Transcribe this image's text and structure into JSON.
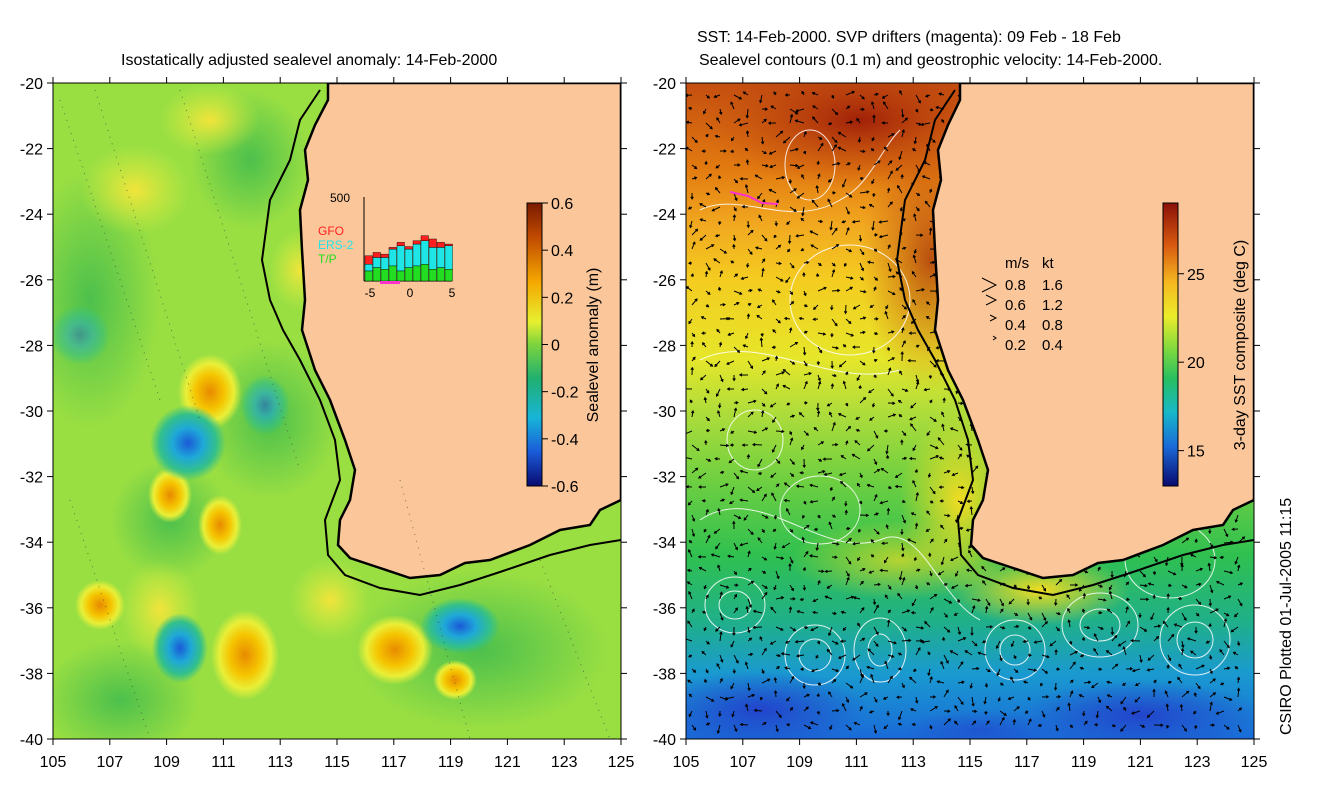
{
  "left_panel": {
    "title": "Isostatically adjusted sealevel anomaly: 14-Feb-2000",
    "colorbar": {
      "label": "Sealevel anomaly (m)",
      "ticks": [
        "0.6",
        "0.4",
        "0.2",
        "0",
        "-0.2",
        "-0.4",
        "-0.6"
      ],
      "min": -0.6,
      "max": 0.6
    },
    "inset": {
      "ymax_label": "500",
      "legend": [
        {
          "name": "GFO",
          "color": "#ff1e1e"
        },
        {
          "name": "ERS-2",
          "color": "#1ee6e6"
        },
        {
          "name": "T/P",
          "color": "#22dd22"
        }
      ],
      "xticks": [
        "-5",
        "0",
        "5"
      ],
      "bars": [
        {
          "tp": 60,
          "ers": 40,
          "gfo": 50
        },
        {
          "tp": 80,
          "ers": 60,
          "gfo": 30
        },
        {
          "tp": 70,
          "ers": 70,
          "gfo": 20
        },
        {
          "tp": 90,
          "ers": 100,
          "gfo": 10
        },
        {
          "tp": 60,
          "ers": 150,
          "gfo": 20
        },
        {
          "tp": 80,
          "ers": 110,
          "gfo": 15
        },
        {
          "tp": 90,
          "ers": 130,
          "gfo": 20
        },
        {
          "tp": 100,
          "ers": 140,
          "gfo": 30
        },
        {
          "tp": 70,
          "ers": 130,
          "gfo": 50
        },
        {
          "tp": 80,
          "ers": 120,
          "gfo": 30
        },
        {
          "tp": 70,
          "ers": 140,
          "gfo": 10
        }
      ]
    }
  },
  "right_panel": {
    "title_line1": "SST: 14-Feb-2000. SVP drifters (magenta): 09 Feb - 18 Feb",
    "title_line2": "Sealevel contours (0.1 m) and geostrophic velocity: 14-Feb-2000.",
    "colorbar": {
      "label": "3-day SST composite (deg C)",
      "ticks": [
        "25",
        "20",
        "15"
      ],
      "min": 13,
      "max": 29
    },
    "velocity_legend": {
      "header_ms": "m/s",
      "header_kt": "kt",
      "rows": [
        {
          "ms": "0.8",
          "kt": "1.6"
        },
        {
          "ms": "0.6",
          "kt": "1.2"
        },
        {
          "ms": "0.4",
          "kt": "0.8"
        },
        {
          "ms": "0.2",
          "kt": "0.4"
        }
      ]
    }
  },
  "axes": {
    "y_ticks": [
      "-20",
      "-22",
      "-24",
      "-26",
      "-28",
      "-30",
      "-32",
      "-34",
      "-36",
      "-38",
      "-40"
    ],
    "x_ticks": [
      "105",
      "107",
      "109",
      "111",
      "113",
      "115",
      "117",
      "119",
      "121",
      "123",
      "125"
    ],
    "lon_range": [
      105,
      125
    ],
    "lat_range": [
      -40,
      -20
    ]
  },
  "credit": "CSIRO Plotted 01-Jul-2005 11:15",
  "colors": {
    "land": "#fbc79a",
    "coast": "#000000",
    "contour": "#ffffff",
    "drifter": "#ff33cc"
  }
}
